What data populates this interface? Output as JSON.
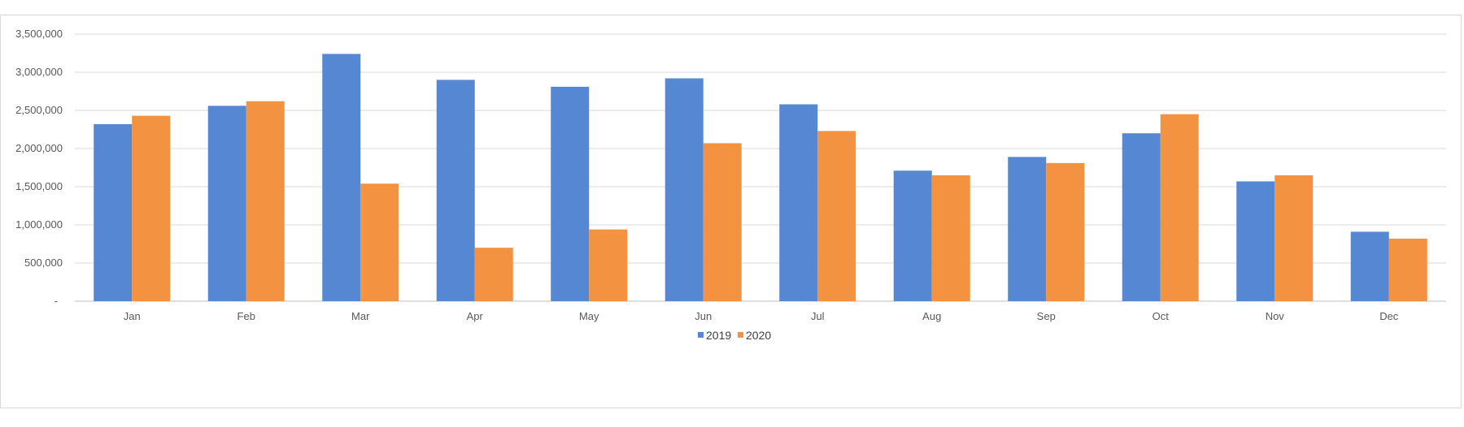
{
  "chart_data": {
    "type": "bar",
    "categories": [
      "Jan",
      "Feb",
      "Mar",
      "Apr",
      "May",
      "Jun",
      "Jul",
      "Aug",
      "Sep",
      "Oct",
      "Nov",
      "Dec"
    ],
    "series": [
      {
        "name": "2019",
        "color": "#5587d2",
        "values": [
          2320000,
          2560000,
          3240000,
          2900000,
          2810000,
          2920000,
          2580000,
          1710000,
          1890000,
          2200000,
          1570000,
          910000
        ]
      },
      {
        "name": "2020",
        "color": "#f39341",
        "values": [
          2430000,
          2620000,
          1540000,
          700000,
          940000,
          2070000,
          2230000,
          1650000,
          1810000,
          2450000,
          1650000,
          820000
        ]
      }
    ],
    "ylim": [
      0,
      3500000
    ],
    "yticks": [
      0,
      500000,
      1000000,
      1500000,
      2000000,
      2500000,
      3000000,
      3500000
    ],
    "ytick_labels": [
      "-",
      "500,000",
      "1,000,000",
      "1,500,000",
      "2,000,000",
      "2,500,000",
      "3,000,000",
      "3,500,000"
    ],
    "grid": true,
    "legend_position": "bottom",
    "title": "",
    "xlabel": "",
    "ylabel": ""
  }
}
